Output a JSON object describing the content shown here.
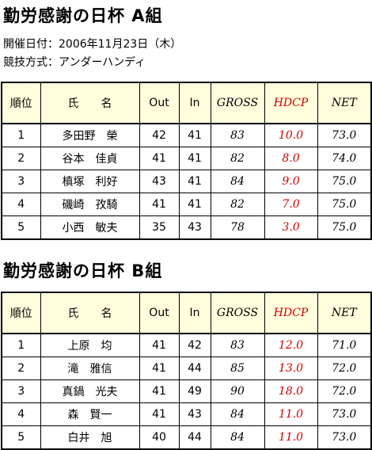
{
  "groups": [
    {
      "title": "勤労感謝の日杯 A組",
      "info": [
        "開催日付：2006年11月23日（木）",
        "競技方式：アンダーハンディ"
      ],
      "table": {
        "header": [
          "順位",
          "氏　　名",
          "Out",
          "In",
          "GROSS",
          "HDCP",
          "NET"
        ],
        "rows": [
          [
            "1",
            "多田野　榮",
            "42",
            "41",
            "83",
            "10.0",
            "73.0"
          ],
          [
            "2",
            "谷本　佳貞",
            "41",
            "41",
            "82",
            "8.0",
            "74.0"
          ],
          [
            "3",
            "槙塚　利好",
            "43",
            "41",
            "84",
            "9.0",
            "75.0"
          ],
          [
            "4",
            "磯崎　孜騎",
            "41",
            "41",
            "82",
            "7.0",
            "75.0"
          ],
          [
            "5",
            "小西　敏夫",
            "35",
            "43",
            "78",
            "3.0",
            "75.0"
          ]
        ]
      }
    },
    {
      "title": "勤労感謝の日杯 B組",
      "table": {
        "header": [
          "順位",
          "氏　　名",
          "Out",
          "In",
          "GROSS",
          "HDCP",
          "NET"
        ],
        "rows": [
          [
            "1",
            "上原　均",
            "41",
            "42",
            "83",
            "12.0",
            "71.0"
          ],
          [
            "2",
            "滝　雅信",
            "41",
            "44",
            "85",
            "13.0",
            "72.0"
          ],
          [
            "3",
            "真鍋　光夫",
            "41",
            "49",
            "90",
            "18.0",
            "72.0"
          ],
          [
            "4",
            "森　賢一",
            "41",
            "43",
            "84",
            "11.0",
            "73.0"
          ],
          [
            "5",
            "白井　旭",
            "40",
            "44",
            "84",
            "11.0",
            "73.0"
          ]
        ]
      }
    }
  ]
}
